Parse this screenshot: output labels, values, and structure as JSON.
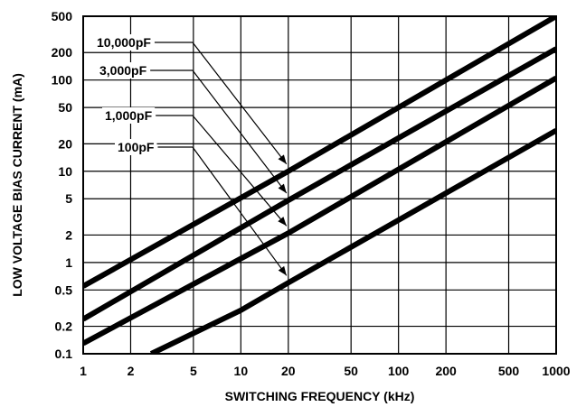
{
  "chart_data": {
    "type": "line",
    "xlabel": "SWITCHING FREQUENCY (kHz)",
    "ylabel": "LOW VOLTAGE BIAS CURRENT (mA)",
    "x_scale": "log",
    "y_scale": "log",
    "xlim": [
      1,
      1000
    ],
    "ylim": [
      0.1,
      500
    ],
    "x_ticks": [
      1,
      2,
      5,
      10,
      20,
      50,
      100,
      200,
      500,
      1000
    ],
    "x_tick_labels": [
      "1",
      "2",
      "5",
      "10",
      "20",
      "50",
      "100",
      "200",
      "500",
      "1000"
    ],
    "y_ticks": [
      0.1,
      0.2,
      0.5,
      1,
      2,
      5,
      10,
      20,
      50,
      100,
      200,
      500
    ],
    "y_tick_labels": [
      "0.1",
      "0.2",
      "0.5",
      "1",
      "2",
      "5",
      "10",
      "20",
      "50",
      "100",
      "200",
      "500"
    ],
    "grid": true,
    "series": [
      {
        "name": "10,000pF",
        "points": [
          [
            1,
            0.55
          ],
          [
            20,
            10
          ],
          [
            1000,
            500
          ]
        ],
        "marker_x": 20
      },
      {
        "name": "3,000pF",
        "points": [
          [
            1,
            0.24
          ],
          [
            20,
            4.8
          ],
          [
            1000,
            220
          ]
        ],
        "marker_x": 20
      },
      {
        "name": "1,000pF",
        "points": [
          [
            1,
            0.13
          ],
          [
            20,
            2.1
          ],
          [
            1000,
            105
          ]
        ],
        "marker_x": 20
      },
      {
        "name": "100pF",
        "points": [
          [
            2.7,
            0.1
          ],
          [
            10,
            0.3
          ],
          [
            20,
            0.6
          ],
          [
            1000,
            28
          ]
        ],
        "marker_x": 20
      }
    ]
  }
}
